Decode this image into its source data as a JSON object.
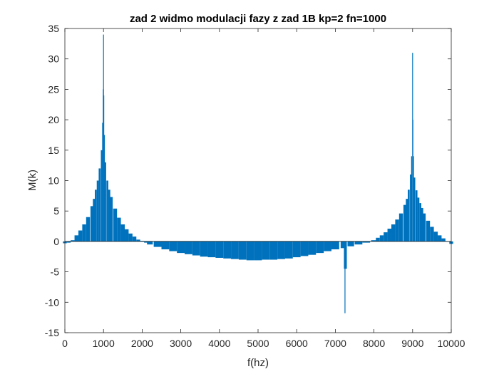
{
  "chart_data": {
    "type": "bar",
    "title": "zad 2 widmo modulacji fazy z zad 1B kp=2 fn=1000",
    "xlabel": "f(hz)",
    "ylabel": "M(k)",
    "xlim": [
      0,
      10000
    ],
    "ylim": [
      -15,
      35
    ],
    "xticks": [
      0,
      1000,
      2000,
      3000,
      4000,
      5000,
      6000,
      7000,
      8000,
      9000,
      10000
    ],
    "yticks": [
      -15,
      -10,
      -5,
      0,
      5,
      10,
      15,
      20,
      25,
      30,
      35
    ],
    "grid": false,
    "bar_color": "#0072BD",
    "series": [
      {
        "x": [
          0,
          100,
          200,
          300,
          400,
          500,
          600,
          700,
          750,
          800,
          850,
          900,
          950,
          975,
          990,
          1000,
          1010,
          1025,
          1050,
          1100,
          1150,
          1200,
          1300,
          1400,
          1500,
          1600,
          1700,
          1800,
          1900,
          2000,
          2100,
          2200,
          2400,
          2600,
          2800,
          3000,
          3200,
          3400,
          3600,
          3800,
          4000,
          4200,
          4400,
          4600,
          4800,
          5000,
          5200,
          5400,
          5600,
          5800,
          6000,
          6200,
          6400,
          6600,
          6800,
          7000,
          7200,
          7250,
          7260,
          7400,
          7600,
          7800,
          8000,
          8100,
          8200,
          8300,
          8400,
          8500,
          8600,
          8700,
          8800,
          8850,
          8900,
          8950,
          8975,
          9000,
          9010,
          9025,
          9050,
          9100,
          9150,
          9200,
          9250,
          9300,
          9400,
          9500,
          9600,
          9700,
          9800,
          9900,
          10000
        ],
        "values": [
          -0.3,
          -0.2,
          0.2,
          1.0,
          1.8,
          2.8,
          4.0,
          5.8,
          7.0,
          8.5,
          10.0,
          12.0,
          15.0,
          19.5,
          25.0,
          34.0,
          24.0,
          17.5,
          13.0,
          10.0,
          8.5,
          7.3,
          5.4,
          3.9,
          2.8,
          2.0,
          1.3,
          0.8,
          0.3,
          0.1,
          -0.2,
          -0.5,
          -0.9,
          -1.3,
          -1.6,
          -1.9,
          -2.1,
          -2.3,
          -2.5,
          -2.6,
          -2.7,
          -2.8,
          -2.9,
          -3.0,
          -3.1,
          -3.1,
          -3.0,
          -3.0,
          -2.9,
          -2.8,
          -2.6,
          -2.4,
          -2.2,
          -1.9,
          -1.6,
          -1.3,
          -1.1,
          -11.8,
          -4.5,
          -0.8,
          -0.5,
          -0.2,
          0.2,
          0.6,
          1.0,
          1.5,
          2.1,
          2.8,
          3.6,
          4.6,
          6.0,
          7.0,
          8.5,
          11.0,
          14.0,
          31.0,
          20.0,
          14.0,
          10.5,
          8.4,
          7.2,
          6.3,
          5.5,
          4.6,
          3.4,
          2.4,
          1.6,
          1.0,
          0.5,
          0.0,
          -0.4
        ]
      }
    ]
  }
}
